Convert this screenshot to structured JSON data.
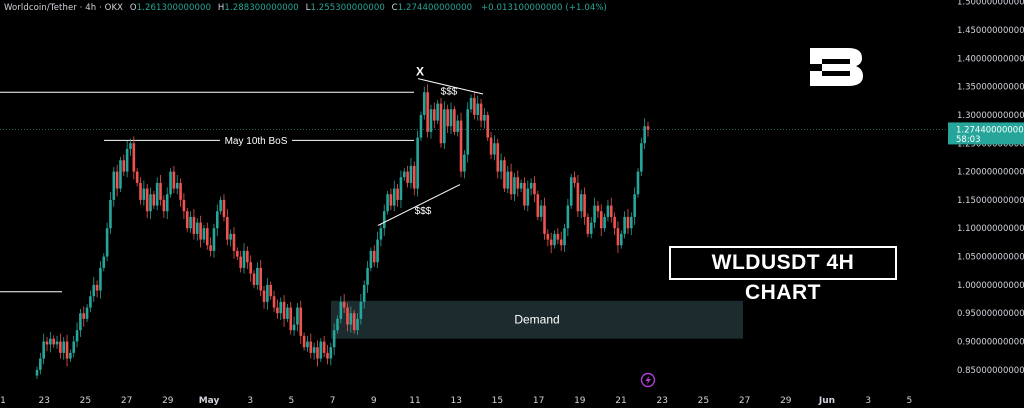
{
  "header": {
    "symbol": "Worldcoin/Tether · 4h · OKX",
    "open_label": "O",
    "open": "1.261300000000",
    "high_label": "H",
    "high": "1.288300000000",
    "low_label": "L",
    "low": "1.255300000000",
    "close_label": "C",
    "close": "1.274400000000",
    "change": "+0.013100000000 (+1.04%)"
  },
  "chart_title": "WLDUSDT 4H CHART",
  "price_tag": {
    "value": "1.274400000000",
    "countdown": "58:03"
  },
  "annotations": {
    "bos": "May 10th BoS",
    "x_mark": "X",
    "liquidity_top": "$$$",
    "liquidity_bottom": "$$$",
    "demand": "Demand"
  },
  "icons": {
    "logo": "brand-b-logo",
    "alert": "lightning-alert-icon"
  },
  "colors": {
    "up": "#26a69a",
    "down": "#ef5350",
    "demand": "#1c2b2d",
    "price_tag": "#26a69a",
    "background": "#000000"
  },
  "chart_data": {
    "type": "candlestick",
    "title": "WLDUSDT 4H CHART",
    "ylim": [
      0.8,
      1.5
    ],
    "y_ticks": [
      "1.500000000000",
      "1.450000000000",
      "1.400000000000",
      "1.350000000000",
      "1.300000000000",
      "1.250000000000",
      "1.200000000000",
      "1.150000000000",
      "1.100000000000",
      "1.050000000000",
      "1.000000000000",
      "0.950000000000",
      "0.900000000000",
      "0.850000000000"
    ],
    "x_ticks": [
      "1",
      "23",
      "25",
      "27",
      "29",
      "May",
      "3",
      "5",
      "7",
      "9",
      "11",
      "13",
      "15",
      "17",
      "19",
      "21",
      "23",
      "25",
      "27",
      "29",
      "Jun",
      "3",
      "5"
    ],
    "last_price": 1.2744,
    "levels": [
      {
        "label": "",
        "price": 1.34
      },
      {
        "label": "May 10th BoS",
        "price": 1.255
      },
      {
        "label": "",
        "price": 0.988
      }
    ],
    "zones": [
      {
        "label": "Demand",
        "from": 0.905,
        "to": 0.972
      }
    ],
    "series": [
      {
        "values": [
          0.85,
          0.87,
          0.9,
          0.895,
          0.905,
          0.895,
          0.9,
          0.88,
          0.9,
          0.87,
          0.88,
          0.9,
          0.92,
          0.95,
          0.94,
          0.96,
          0.98,
          1.0,
          0.99,
          1.03,
          1.05,
          1.1,
          1.15,
          1.2,
          1.17,
          1.22,
          1.2,
          1.24,
          1.25,
          1.2,
          1.18,
          1.15,
          1.17,
          1.13,
          1.16,
          1.14,
          1.18,
          1.15,
          1.13,
          1.16,
          1.2,
          1.17,
          1.18,
          1.15,
          1.13,
          1.1,
          1.12,
          1.09,
          1.11,
          1.08,
          1.1,
          1.07,
          1.06,
          1.1,
          1.13,
          1.15,
          1.12,
          1.08,
          1.09,
          1.06,
          1.05,
          1.03,
          1.06,
          1.04,
          1.02,
          1.0,
          1.03,
          0.99,
          0.97,
          1.0,
          0.98,
          0.96,
          0.95,
          0.97,
          0.94,
          0.96,
          0.92,
          0.93,
          0.96,
          0.91,
          0.89,
          0.9,
          0.88,
          0.89,
          0.87,
          0.9,
          0.88,
          0.87,
          0.89,
          0.92,
          0.94,
          0.97,
          0.96,
          0.93,
          0.95,
          0.92,
          0.94,
          0.97,
          1.0,
          1.03,
          1.06,
          1.04,
          1.08,
          1.1,
          1.13,
          1.16,
          1.14,
          1.17,
          1.15,
          1.19,
          1.2,
          1.18,
          1.21,
          1.17,
          1.26,
          1.3,
          1.34,
          1.27,
          1.31,
          1.29,
          1.32,
          1.25,
          1.31,
          1.28,
          1.31,
          1.27,
          1.29,
          1.2,
          1.23,
          1.31,
          1.33,
          1.3,
          1.32,
          1.29,
          1.3,
          1.26,
          1.23,
          1.25,
          1.2,
          1.22,
          1.17,
          1.2,
          1.16,
          1.19,
          1.17,
          1.18,
          1.14,
          1.17,
          1.18,
          1.16,
          1.12,
          1.14,
          1.09,
          1.08,
          1.07,
          1.09,
          1.08,
          1.07,
          1.1,
          1.14,
          1.19,
          1.18,
          1.13,
          1.16,
          1.12,
          1.09,
          1.11,
          1.14,
          1.13,
          1.1,
          1.12,
          1.14,
          1.12,
          1.1,
          1.07,
          1.09,
          1.12,
          1.1,
          1.12,
          1.16,
          1.2,
          1.25,
          1.28,
          1.274
        ]
      }
    ]
  }
}
